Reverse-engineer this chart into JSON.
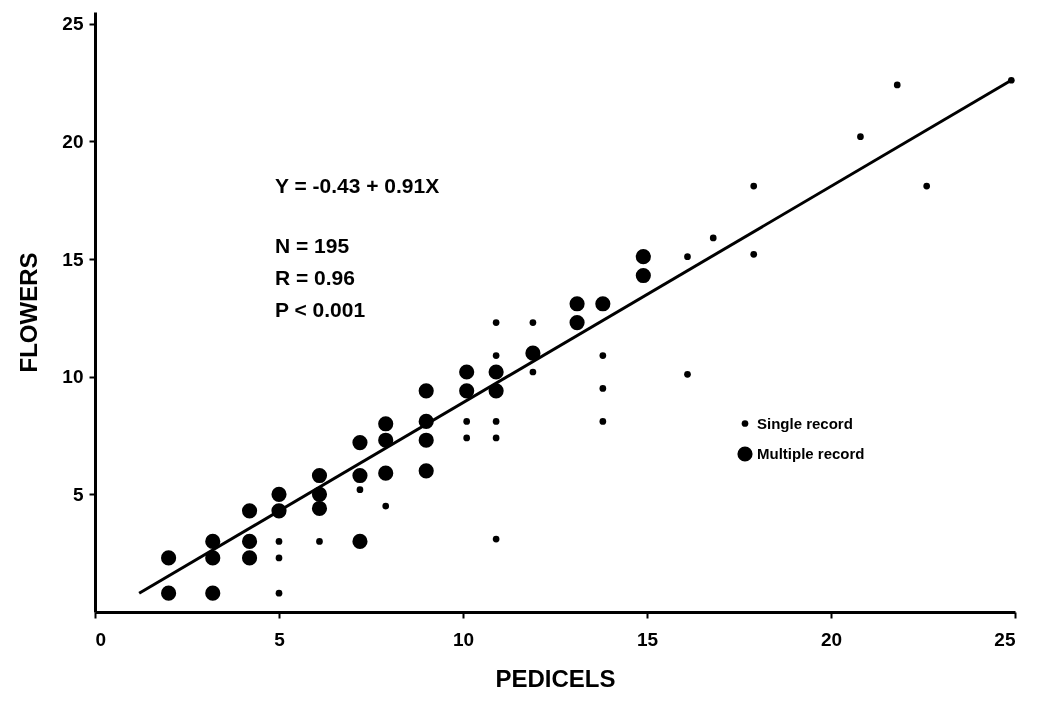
{
  "chart_data": {
    "type": "scatter",
    "xlabel": "PEDICELS",
    "ylabel": "FLOWERS",
    "annotations": [
      "Y = -0.43 + 0.91X",
      "N = 195",
      "R = 0.96",
      "P < 0.001"
    ],
    "xlim": [
      0,
      25
    ],
    "ylim": [
      0,
      25.5
    ],
    "xticks": [
      0,
      5,
      10,
      15,
      20,
      25
    ],
    "yticks": [
      5,
      10,
      15,
      20,
      25
    ],
    "grid": false,
    "legend": "bottom right",
    "marker": "circle",
    "series": [
      {
        "name": "Single record",
        "color": "#000000",
        "x": [
          5.0,
          5.0,
          5.0,
          6.1,
          7.2,
          7.9,
          10.9,
          10.9,
          11.9,
          11.9,
          10.1,
          10.1,
          10.9,
          10.9,
          13.8,
          13.8,
          13.8,
          10.9,
          16.1,
          16.1,
          16.8,
          17.9,
          17.9,
          20.8,
          21.8,
          22.6,
          24.9
        ],
        "values": [
          3.0,
          2.3,
          0.8,
          3.0,
          5.2,
          4.5,
          12.3,
          10.9,
          12.3,
          10.2,
          8.1,
          7.4,
          8.1,
          7.4,
          10.9,
          9.5,
          8.1,
          3.1,
          15.1,
          10.1,
          15.9,
          18.1,
          15.2,
          20.2,
          22.4,
          18.1,
          22.6
        ]
      },
      {
        "name": "Multiple record",
        "color": "#000000",
        "x": [
          2.0,
          3.2,
          2.0,
          3.2,
          3.2,
          4.2,
          4.2,
          4.2,
          5.0,
          5.0,
          6.1,
          6.1,
          6.1,
          7.2,
          7.2,
          7.2,
          7.9,
          7.9,
          7.9,
          9.0,
          9.0,
          9.0,
          9.0,
          10.1,
          10.1,
          10.9,
          10.9,
          11.9,
          13.1,
          13.1,
          13.8,
          14.9,
          14.9
        ],
        "values": [
          0.8,
          0.8,
          2.3,
          2.3,
          3.0,
          2.3,
          3.0,
          4.3,
          4.3,
          5.0,
          4.4,
          5.0,
          5.8,
          5.8,
          7.2,
          3.0,
          5.9,
          7.3,
          8.0,
          8.1,
          6.0,
          7.3,
          9.4,
          10.2,
          9.4,
          10.2,
          9.4,
          11.0,
          13.1,
          12.3,
          13.1,
          15.1,
          14.3
        ]
      },
      {
        "type": "line",
        "marker": "none",
        "color": "#000000",
        "x": [
          1.2,
          24.9
        ],
        "values": [
          0.8,
          22.6
        ]
      }
    ]
  }
}
